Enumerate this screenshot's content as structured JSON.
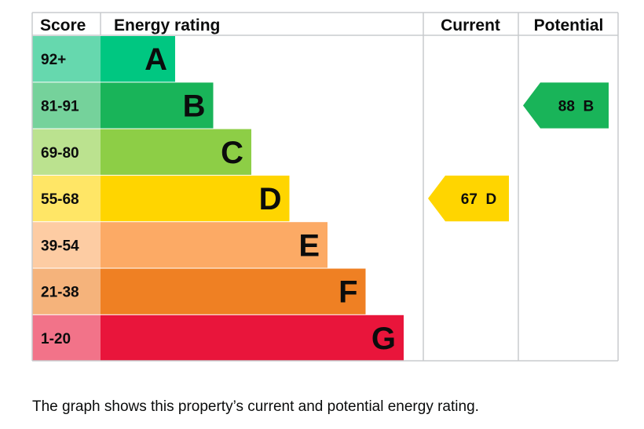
{
  "chart_data": {
    "type": "bar",
    "headers": {
      "score": "Score",
      "rating": "Energy rating",
      "current": "Current",
      "potential": "Potential"
    },
    "bands": [
      {
        "score": "92+",
        "letter": "A",
        "color": "#00c781",
        "score_color": "#66d8ae"
      },
      {
        "score": "81-91",
        "letter": "B",
        "color": "#19b459",
        "score_color": "#75d29b"
      },
      {
        "score": "69-80",
        "letter": "C",
        "color": "#8dce46",
        "score_color": "#bbe28f"
      },
      {
        "score": "55-68",
        "letter": "D",
        "color": "#ffd500",
        "score_color": "#ffe666"
      },
      {
        "score": "39-54",
        "letter": "E",
        "color": "#fcaa65",
        "score_color": "#fdcca3"
      },
      {
        "score": "21-38",
        "letter": "F",
        "color": "#ef8023",
        "score_color": "#f5b37b"
      },
      {
        "score": "1-20",
        "letter": "G",
        "color": "#e9153b",
        "score_color": "#f27389"
      }
    ],
    "current": {
      "value": 67,
      "letter": "D",
      "label": "67  D",
      "color": "#ffd500"
    },
    "potential": {
      "value": 88,
      "letter": "B",
      "label": "88  B",
      "color": "#19b459"
    }
  },
  "caption": "The graph shows this property’s current and potential energy rating."
}
